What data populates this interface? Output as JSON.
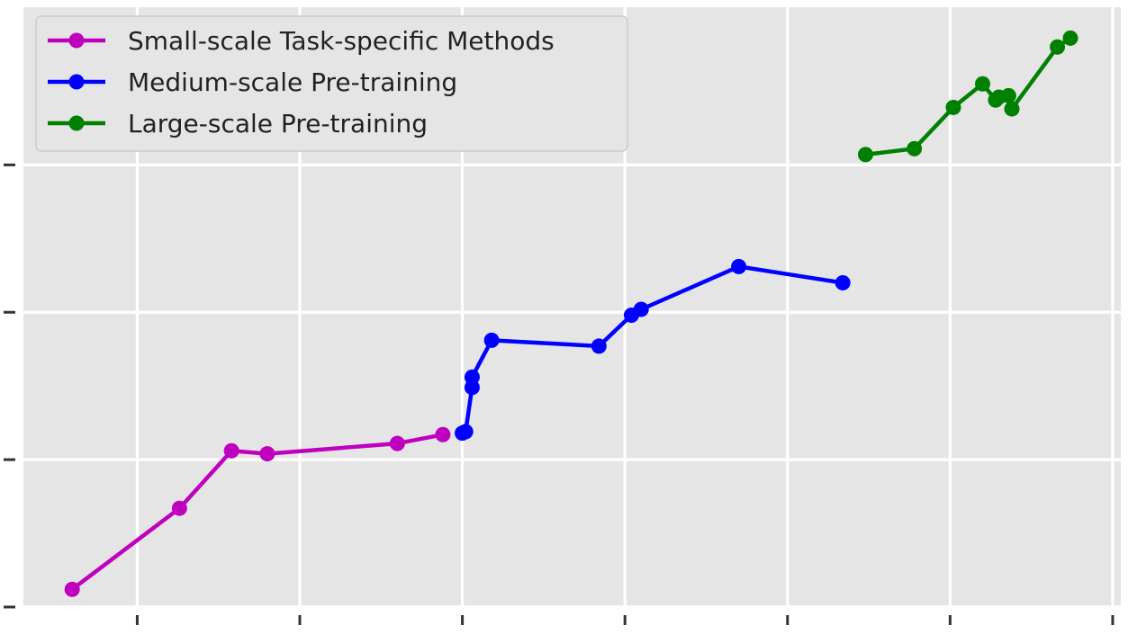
{
  "chart_data": {
    "type": "line",
    "title": "",
    "xlabel": "",
    "ylabel": "",
    "xlim": [
      0,
      33.75
    ],
    "ylim": [
      0,
      40.7
    ],
    "x_ticks": [
      3.5,
      8.5,
      13.5,
      18.5,
      23.5,
      28.5,
      33.5
    ],
    "y_ticks": [
      0,
      10,
      20,
      30
    ],
    "tick_labels_visible": false,
    "grid": true,
    "background": "#e5e5e5",
    "legend": {
      "position": "top-left"
    },
    "series": [
      {
        "name": "Small-scale Task-specific Methods",
        "color": "#bf00bf",
        "points": [
          [
            1.5,
            1.2
          ],
          [
            4.8,
            6.7
          ],
          [
            6.4,
            10.6
          ],
          [
            7.5,
            10.4
          ],
          [
            11.5,
            11.1
          ],
          [
            12.9,
            11.7
          ]
        ]
      },
      {
        "name": "Medium-scale Pre-training",
        "color": "#0000ff",
        "points": [
          [
            13.5,
            11.8
          ],
          [
            13.6,
            11.9
          ],
          [
            13.8,
            14.9
          ],
          [
            13.8,
            15.6
          ],
          [
            14.4,
            18.1
          ],
          [
            17.7,
            17.7
          ],
          [
            18.7,
            19.8
          ],
          [
            19.0,
            20.2
          ],
          [
            22.0,
            23.1
          ],
          [
            25.2,
            22.0
          ]
        ]
      },
      {
        "name": "Large-scale Pre-training",
        "color": "#008000",
        "points": [
          [
            25.9,
            30.7
          ],
          [
            27.4,
            31.1
          ],
          [
            28.6,
            33.9
          ],
          [
            29.5,
            35.5
          ],
          [
            29.9,
            34.4
          ],
          [
            30.0,
            34.6
          ],
          [
            30.3,
            34.7
          ],
          [
            30.4,
            33.8
          ],
          [
            31.8,
            38.0
          ],
          [
            32.2,
            38.6
          ]
        ]
      }
    ]
  }
}
